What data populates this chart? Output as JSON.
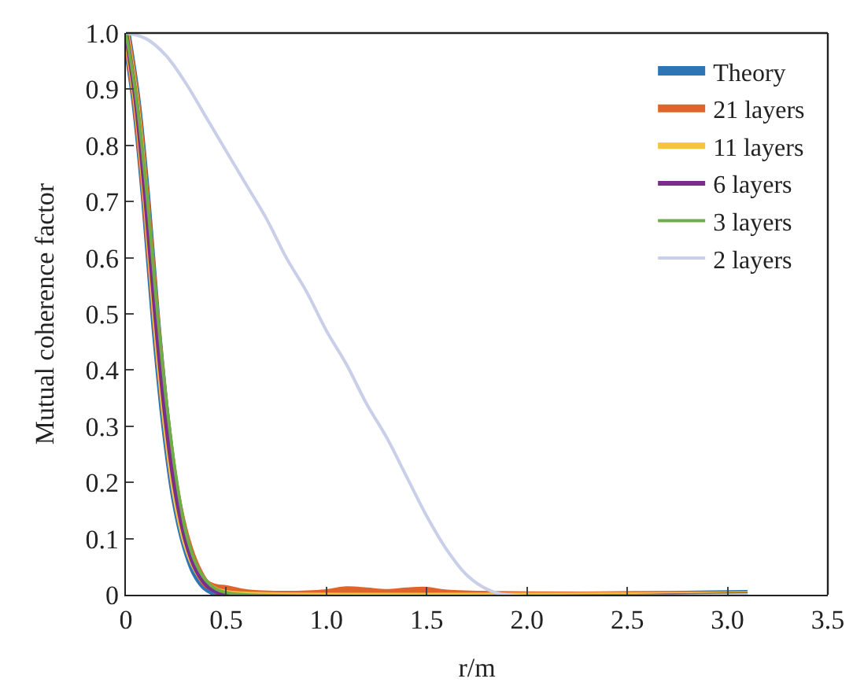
{
  "chart_data": {
    "type": "line",
    "xlabel": "r/m",
    "ylabel": "Mutual coherence factor",
    "xlim": [
      0,
      3.5
    ],
    "ylim": [
      0,
      1.0
    ],
    "xticks": [
      {
        "value": 0,
        "label": "0"
      },
      {
        "value": 0.5,
        "label": "0.5"
      },
      {
        "value": 1,
        "label": "1.0"
      },
      {
        "value": 1.5,
        "label": "1.5"
      },
      {
        "value": 2,
        "label": "2.0"
      },
      {
        "value": 2.5,
        "label": "2.5"
      },
      {
        "value": 3,
        "label": "3.0"
      },
      {
        "value": 3.5,
        "label": "3.5"
      }
    ],
    "yticks": [
      {
        "value": 0,
        "label": "0"
      },
      0.1,
      0.2,
      0.3,
      0.4,
      0.5,
      0.6,
      0.7,
      0.8,
      0.9,
      {
        "value": 1,
        "label": "1.0"
      }
    ],
    "legend": "top right",
    "marker": "none",
    "line_style": "solid",
    "series": [
      {
        "name": "Theory",
        "color": "#2e75b6",
        "x": [
          0,
          0.05,
          0.1,
          0.15,
          0.2,
          0.25,
          0.3,
          0.35,
          0.4,
          0.45,
          0.5,
          3.1
        ],
        "values": [
          1,
          0.88,
          0.7,
          0.48,
          0.3,
          0.17,
          0.09,
          0.04,
          0.015,
          0.005,
          0,
          0
        ]
      },
      {
        "name": "21 layers",
        "color": "#e0642a",
        "x": [
          0,
          0.05,
          0.1,
          0.15,
          0.2,
          0.25,
          0.3,
          0.35,
          0.4,
          0.45,
          0.5,
          0.6,
          0.8,
          1.0,
          1.1,
          1.2,
          1.3,
          1.4,
          1.5,
          1.6,
          3.1
        ],
        "values": [
          1,
          0.88,
          0.7,
          0.49,
          0.31,
          0.18,
          0.1,
          0.05,
          0.02,
          0.012,
          0.01,
          0.003,
          0,
          0.003,
          0.008,
          0.006,
          0.003,
          0.006,
          0.007,
          0.002,
          0
        ]
      },
      {
        "name": "11 layers",
        "color": "#f5c242",
        "x": [
          0,
          0.05,
          0.1,
          0.15,
          0.2,
          0.25,
          0.3,
          0.35,
          0.4,
          0.45,
          0.5,
          0.6,
          3.1
        ],
        "values": [
          1,
          0.88,
          0.7,
          0.48,
          0.3,
          0.17,
          0.09,
          0.045,
          0.02,
          0.008,
          0.003,
          0,
          0
        ]
      },
      {
        "name": "6 layers",
        "color": "#7b2d8e",
        "x": [
          0,
          0.05,
          0.1,
          0.15,
          0.2,
          0.25,
          0.3,
          0.35,
          0.4,
          0.45,
          0.5,
          3.1
        ],
        "values": [
          1,
          0.88,
          0.7,
          0.49,
          0.31,
          0.18,
          0.095,
          0.045,
          0.018,
          0.006,
          0,
          0
        ]
      },
      {
        "name": "3 layers",
        "color": "#70ad47",
        "x": [
          0,
          0.05,
          0.1,
          0.15,
          0.2,
          0.25,
          0.3,
          0.35,
          0.4,
          0.45,
          0.5,
          0.6,
          3.1
        ],
        "values": [
          1,
          0.89,
          0.73,
          0.53,
          0.35,
          0.21,
          0.11,
          0.055,
          0.025,
          0.01,
          0.004,
          0,
          0
        ]
      },
      {
        "name": "2 layers",
        "color": "#c9cfe8",
        "x": [
          0,
          0.1,
          0.2,
          0.3,
          0.4,
          0.5,
          0.6,
          0.7,
          0.8,
          0.9,
          1.0,
          1.1,
          1.2,
          1.3,
          1.4,
          1.5,
          1.6,
          1.7,
          1.8,
          1.9,
          3.1
        ],
        "values": [
          1,
          0.99,
          0.96,
          0.91,
          0.85,
          0.79,
          0.73,
          0.67,
          0.6,
          0.54,
          0.47,
          0.41,
          0.34,
          0.28,
          0.21,
          0.14,
          0.08,
          0.035,
          0.01,
          0,
          0
        ]
      }
    ]
  }
}
